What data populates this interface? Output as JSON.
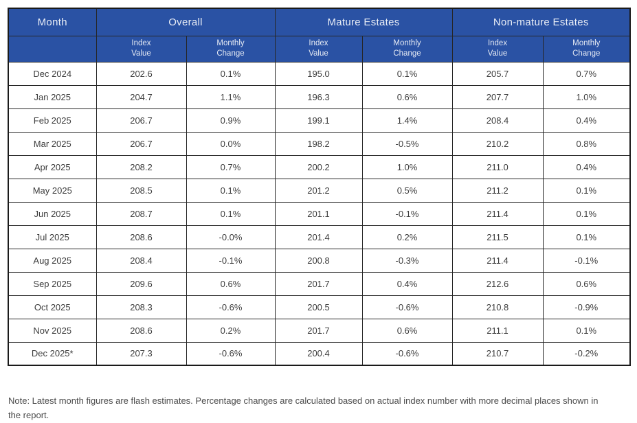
{
  "header": {
    "month_label": "Month",
    "groups": [
      {
        "label": "Overall"
      },
      {
        "label": "Mature Estates"
      },
      {
        "label": "Non-mature Estates"
      }
    ],
    "sub_labels": {
      "index_value": "Index\nValue",
      "monthly_change": "Monthly\nChange"
    }
  },
  "note": "Note: Latest month figures are flash estimates. Percentage changes are calculated based on actual index number with more decimal places shown in the report.",
  "colors": {
    "header_bg": "#2A52A4",
    "header_text": "#EAEEF6",
    "border": "#262626",
    "outer_border": "#1A1A1A",
    "body_text": "#3C3C3C",
    "note_text": "#4A4A4A"
  },
  "chart_data": {
    "type": "table",
    "title": "",
    "columns": [
      "Month",
      "Overall Index Value",
      "Overall Monthly Change",
      "Mature Estates Index Value",
      "Mature Estates Monthly Change",
      "Non-mature Estates Index Value",
      "Non-mature Estates Monthly Change"
    ],
    "rows": [
      [
        "Dec 2024",
        "202.6",
        "0.1%",
        "195.0",
        "0.1%",
        "205.7",
        "0.7%"
      ],
      [
        "Jan 2025",
        "204.7",
        "1.1%",
        "196.3",
        "0.6%",
        "207.7",
        "1.0%"
      ],
      [
        "Feb 2025",
        "206.7",
        "0.9%",
        "199.1",
        "1.4%",
        "208.4",
        "0.4%"
      ],
      [
        "Mar 2025",
        "206.7",
        "0.0%",
        "198.2",
        "-0.5%",
        "210.2",
        "0.8%"
      ],
      [
        "Apr 2025",
        "208.2",
        "0.7%",
        "200.2",
        "1.0%",
        "211.0",
        "0.4%"
      ],
      [
        "May 2025",
        "208.5",
        "0.1%",
        "201.2",
        "0.5%",
        "211.2",
        "0.1%"
      ],
      [
        "Jun 2025",
        "208.7",
        "0.1%",
        "201.1",
        "-0.1%",
        "211.4",
        "0.1%"
      ],
      [
        "Jul 2025",
        "208.6",
        "-0.0%",
        "201.4",
        "0.2%",
        "211.5",
        "0.1%"
      ],
      [
        "Aug 2025",
        "208.4",
        "-0.1%",
        "200.8",
        "-0.3%",
        "211.4",
        "-0.1%"
      ],
      [
        "Sep 2025",
        "209.6",
        "0.6%",
        "201.7",
        "0.4%",
        "212.6",
        "0.6%"
      ],
      [
        "Oct 2025",
        "208.3",
        "-0.6%",
        "200.5",
        "-0.6%",
        "210.8",
        "-0.9%"
      ],
      [
        "Nov 2025",
        "208.6",
        "0.2%",
        "201.7",
        "0.6%",
        "211.1",
        "0.1%"
      ],
      [
        "Dec 2025*",
        "207.3",
        "-0.6%",
        "200.4",
        "-0.6%",
        "210.7",
        "-0.2%"
      ]
    ]
  }
}
